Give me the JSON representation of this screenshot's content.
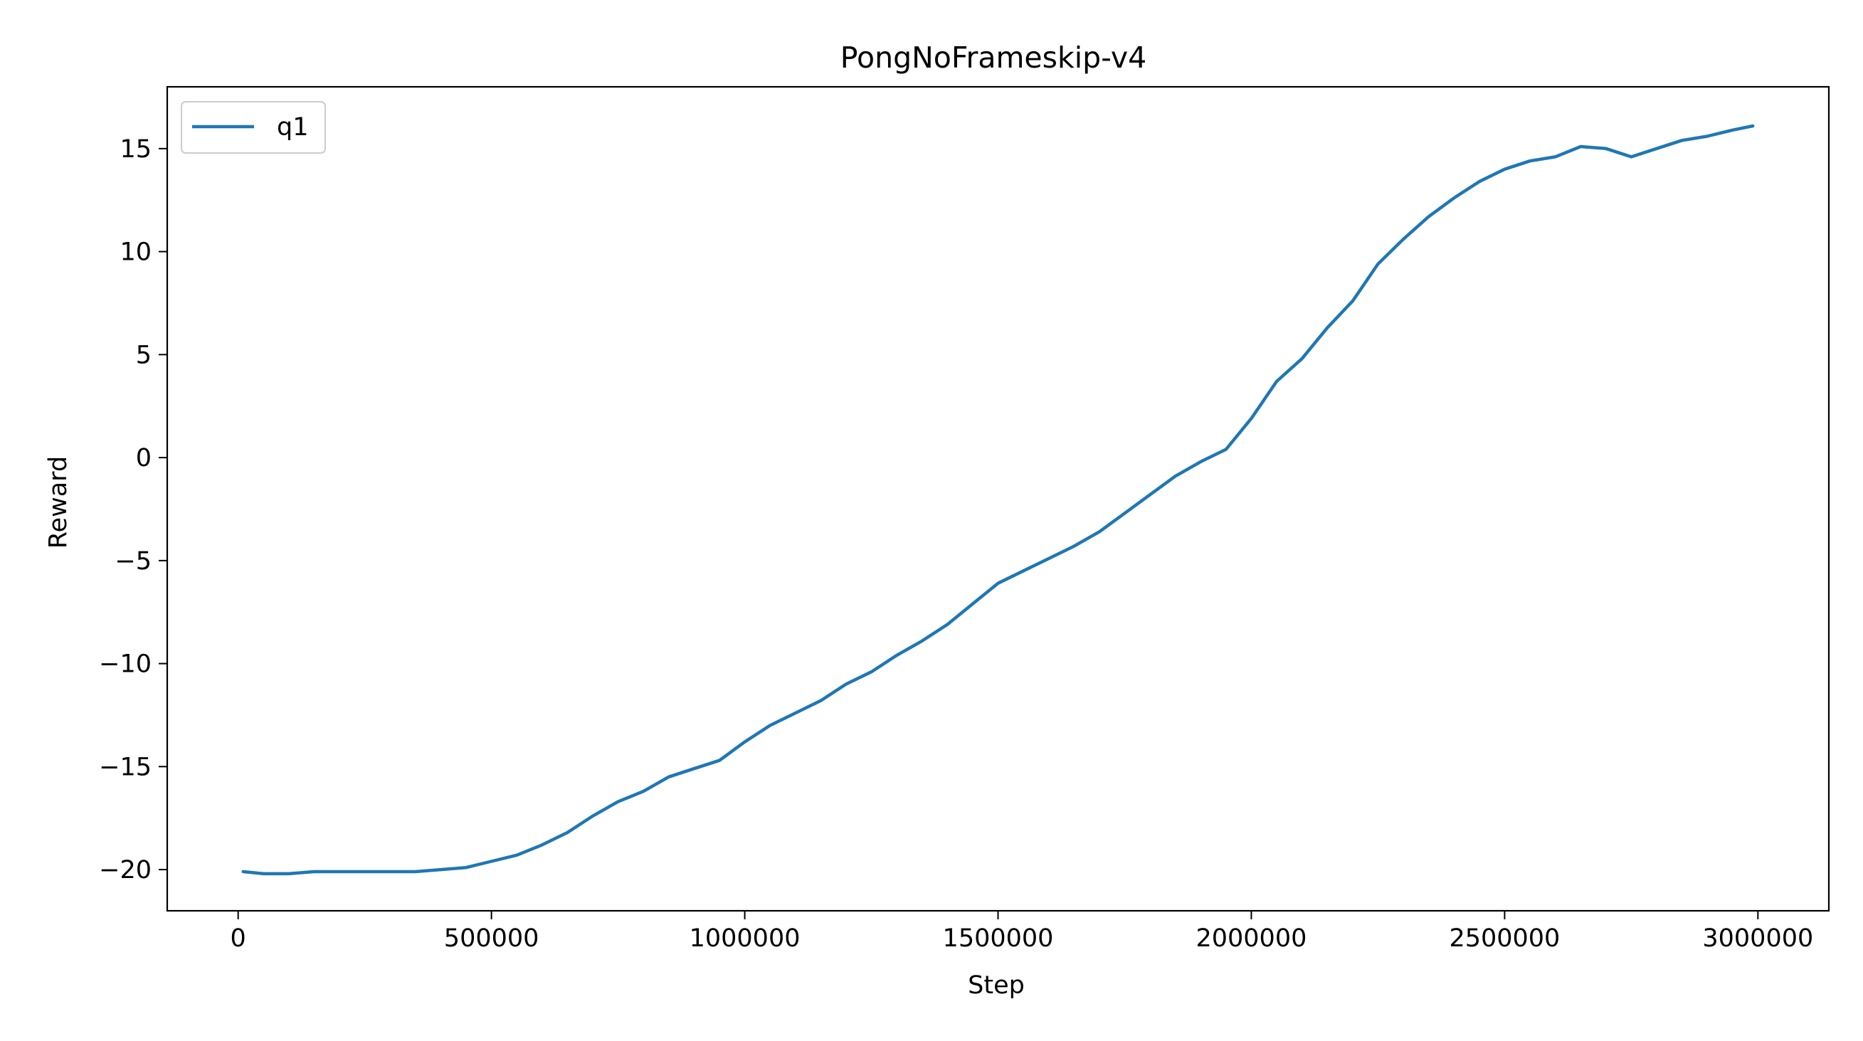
{
  "chart_data": {
    "type": "line",
    "title": "PongNoFrameskip-v4",
    "xlabel": "Step",
    "ylabel": "Reward",
    "xlim": [
      -140000,
      3140000
    ],
    "ylim": [
      -22,
      18
    ],
    "xticks": [
      0,
      500000,
      1000000,
      1500000,
      2000000,
      2500000,
      3000000
    ],
    "xtick_labels": [
      "0",
      "500000",
      "1000000",
      "1500000",
      "2000000",
      "2500000",
      "3000000"
    ],
    "yticks": [
      -20,
      -15,
      -10,
      -5,
      0,
      5,
      10,
      15
    ],
    "ytick_labels": [
      "−20",
      "−15",
      "−10",
      "−5",
      "0",
      "5",
      "10",
      "15"
    ],
    "grid": false,
    "legend_position": "top-left",
    "series": [
      {
        "name": "q1",
        "color": "#1f77b4",
        "x": [
          10000,
          50000,
          100000,
          150000,
          200000,
          250000,
          300000,
          350000,
          400000,
          450000,
          500000,
          550000,
          600000,
          650000,
          700000,
          750000,
          800000,
          850000,
          900000,
          950000,
          1000000,
          1050000,
          1100000,
          1150000,
          1200000,
          1250000,
          1300000,
          1350000,
          1400000,
          1450000,
          1500000,
          1550000,
          1600000,
          1650000,
          1700000,
          1750000,
          1800000,
          1850000,
          1900000,
          1950000,
          2000000,
          2050000,
          2100000,
          2150000,
          2200000,
          2250000,
          2300000,
          2350000,
          2400000,
          2450000,
          2500000,
          2550000,
          2600000,
          2650000,
          2700000,
          2750000,
          2800000,
          2850000,
          2900000,
          2950000,
          2990000
        ],
        "y": [
          -20.1,
          -20.2,
          -20.2,
          -20.1,
          -20.1,
          -20.1,
          -20.1,
          -20.1,
          -20.0,
          -19.9,
          -19.6,
          -19.3,
          -18.8,
          -18.2,
          -17.4,
          -16.7,
          -16.2,
          -15.5,
          -15.1,
          -14.7,
          -13.8,
          -13.0,
          -12.4,
          -11.8,
          -11.0,
          -10.4,
          -9.6,
          -8.9,
          -8.1,
          -7.1,
          -6.1,
          -5.5,
          -4.9,
          -4.3,
          -3.6,
          -2.7,
          -1.8,
          -0.9,
          -0.2,
          0.4,
          1.9,
          3.7,
          4.8,
          6.3,
          7.6,
          9.4,
          10.6,
          11.7,
          12.6,
          13.4,
          14.0,
          14.4,
          14.6,
          15.1,
          15.0,
          14.6,
          15.0,
          15.4,
          15.6,
          15.9,
          16.1
        ]
      }
    ]
  }
}
